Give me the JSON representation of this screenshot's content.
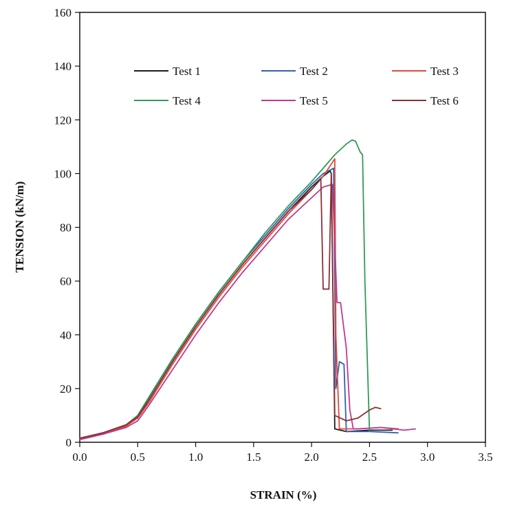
{
  "chart_data": {
    "type": "line",
    "title": "",
    "xlabel": "STRAIN (%)",
    "ylabel": "TENSION (kN/m)",
    "xlim": [
      0,
      3.5
    ],
    "ylim": [
      0,
      160
    ],
    "x_ticks": [
      0.0,
      0.5,
      1.0,
      1.5,
      2.0,
      2.5,
      3.0,
      3.5
    ],
    "x_tick_labels": [
      "0.0",
      "0.5",
      "1.0",
      "1.5",
      "2.0",
      "2.5",
      "3.0",
      "3.5"
    ],
    "y_ticks": [
      0,
      20,
      40,
      60,
      80,
      100,
      120,
      140,
      160
    ],
    "y_tick_labels": [
      "0",
      "20",
      "40",
      "60",
      "80",
      "100",
      "120",
      "140",
      "160"
    ],
    "grid": false,
    "legend_placement": "top",
    "series": [
      {
        "name": "Test 1",
        "color": "#1a1a1a",
        "x": [
          0.0,
          0.2,
          0.4,
          0.5,
          0.6,
          0.8,
          1.0,
          1.2,
          1.4,
          1.6,
          1.8,
          2.0,
          2.1,
          2.16,
          2.17,
          2.2,
          2.3,
          2.5,
          2.7
        ],
        "y": [
          1.5,
          3.5,
          6.5,
          9.0,
          16.0,
          30.0,
          43.0,
          55.0,
          66.0,
          76.0,
          86.0,
          95.0,
          99.0,
          101.0,
          100.0,
          5.0,
          4.0,
          4.5,
          4.5
        ]
      },
      {
        "name": "Test 2",
        "color": "#2f5fb3",
        "x": [
          0.0,
          0.2,
          0.4,
          0.5,
          0.6,
          0.8,
          1.0,
          1.2,
          1.4,
          1.6,
          1.8,
          2.0,
          2.1,
          2.19,
          2.21,
          2.24,
          2.28,
          2.3,
          2.5,
          2.75
        ],
        "y": [
          1.5,
          3.0,
          6.0,
          10.0,
          17.0,
          31.0,
          44.0,
          56.0,
          67.0,
          77.0,
          87.0,
          96.0,
          100.0,
          102.0,
          20.0,
          30.0,
          29.0,
          4.0,
          4.0,
          3.5
        ]
      },
      {
        "name": "Test 3",
        "color": "#e0493a",
        "x": [
          0.0,
          0.2,
          0.4,
          0.5,
          0.6,
          0.8,
          1.0,
          1.2,
          1.4,
          1.6,
          1.8,
          2.0,
          2.1,
          2.2,
          2.21,
          2.24,
          2.4,
          2.6,
          2.75
        ],
        "y": [
          1.0,
          3.0,
          6.0,
          9.0,
          15.0,
          29.0,
          42.0,
          54.0,
          65.0,
          75.0,
          85.0,
          94.0,
          99.0,
          105.5,
          40.0,
          5.0,
          5.0,
          5.5,
          5.0
        ]
      },
      {
        "name": "Test 4",
        "color": "#2e9b55",
        "x": [
          0.0,
          0.2,
          0.4,
          0.5,
          0.6,
          0.8,
          1.0,
          1.2,
          1.4,
          1.6,
          1.8,
          2.0,
          2.1,
          2.2,
          2.3,
          2.35,
          2.38,
          2.42,
          2.44,
          2.46,
          2.5
        ],
        "y": [
          1.5,
          3.5,
          6.5,
          10.0,
          17.0,
          31.0,
          44.0,
          56.0,
          67.0,
          78.0,
          88.0,
          97.0,
          102.0,
          107.0,
          111.0,
          112.5,
          112.0,
          108.0,
          107.0,
          60.0,
          4.0
        ]
      },
      {
        "name": "Test 5",
        "color": "#c0388e",
        "x": [
          0.0,
          0.2,
          0.4,
          0.5,
          0.6,
          0.8,
          1.0,
          1.2,
          1.4,
          1.6,
          1.8,
          2.0,
          2.1,
          2.18,
          2.22,
          2.25,
          2.3,
          2.33,
          2.36,
          2.4,
          2.6,
          2.8,
          2.9
        ],
        "y": [
          1.0,
          3.0,
          5.5,
          8.0,
          14.0,
          27.0,
          40.0,
          52.0,
          63.0,
          73.0,
          83.0,
          91.0,
          95.0,
          96.0,
          52.0,
          52.0,
          35.0,
          12.0,
          5.0,
          5.0,
          5.5,
          4.5,
          5.0
        ]
      },
      {
        "name": "Test 6",
        "color": "#8b2e33",
        "x": [
          0.0,
          0.2,
          0.4,
          0.5,
          0.6,
          0.8,
          1.0,
          1.2,
          1.4,
          1.6,
          1.8,
          2.0,
          2.08,
          2.1,
          2.15,
          2.17,
          2.2,
          2.3,
          2.4,
          2.5,
          2.55,
          2.6
        ],
        "y": [
          1.5,
          3.5,
          6.5,
          9.5,
          16.0,
          30.0,
          43.0,
          55.0,
          66.0,
          76.0,
          86.0,
          94.0,
          98.0,
          57.0,
          57.0,
          100.0,
          10.0,
          8.0,
          9.0,
          12.0,
          13.0,
          12.5
        ]
      }
    ]
  }
}
